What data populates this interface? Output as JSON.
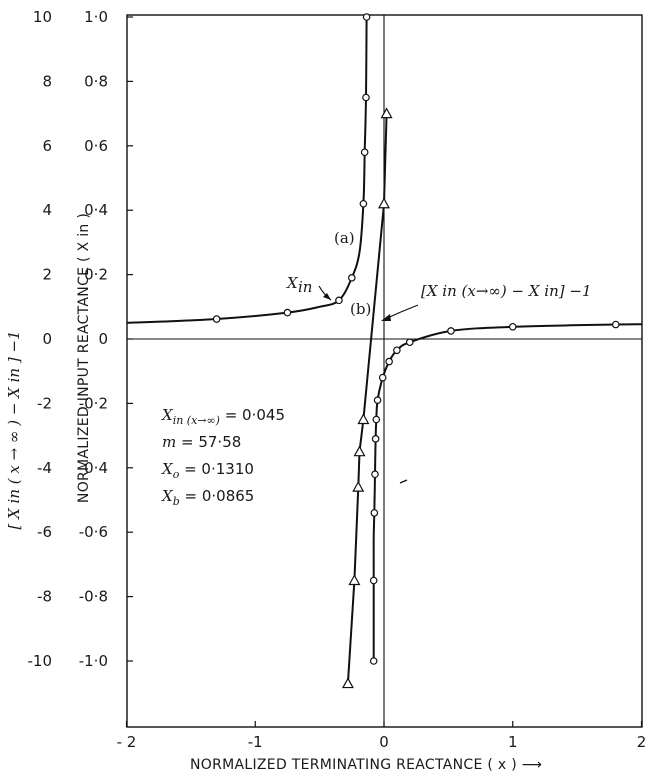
{
  "chart_data": {
    "type": "line",
    "xlabel": "NORMALIZED TERMINATING REACTANCE",
    "xlabel_var": "( x )",
    "ylabel_inner": "NORMALIZED INPUT REACTANCE",
    "ylabel_inner_var": "( X in )",
    "ylabel_outer": "[ X in ( x → ∞ ) − X in ] −1",
    "xlim": [
      -2,
      2
    ],
    "ylim_inner": [
      -1.0,
      1.0
    ],
    "ylim_outer": [
      -10,
      10
    ],
    "x_ticks": [
      "- 2",
      "-1",
      "0",
      "1",
      "2"
    ],
    "y_inner_ticks": [
      "1·0",
      "0·8",
      "0·6",
      "0·4",
      "0·2",
      "0",
      "-0·2",
      "-0·4",
      "-0·6",
      "-0·8",
      "-1·0"
    ],
    "y_outer_ticks": [
      "10",
      "8",
      "6",
      "4",
      "2",
      "0",
      "-2",
      "-4",
      "-6",
      "-8",
      "-10"
    ],
    "series": [
      {
        "label": "(a)",
        "curve_name": "X in",
        "marker": "circle",
        "segments": [
          [
            [
              -2.0,
              0.05
            ],
            [
              -1.3,
              0.062
            ],
            [
              -0.75,
              0.082
            ],
            [
              -0.5,
              0.1
            ],
            [
              -0.35,
              0.12
            ],
            [
              -0.25,
              0.19
            ],
            [
              -0.19,
              0.27
            ],
            [
              -0.16,
              0.42
            ],
            [
              -0.15,
              0.58
            ],
            [
              -0.14,
              0.75
            ],
            [
              -0.135,
              1.0
            ]
          ],
          [
            [
              -0.08,
              -1.0
            ],
            [
              -0.08,
              -0.75
            ],
            [
              -0.08,
              -0.62
            ],
            [
              -0.075,
              -0.54
            ],
            [
              -0.07,
              -0.42
            ],
            [
              -0.065,
              -0.31
            ],
            [
              -0.06,
              -0.25
            ],
            [
              -0.05,
              -0.19
            ],
            [
              -0.01,
              -0.12
            ],
            [
              0.04,
              -0.07
            ],
            [
              0.1,
              -0.035
            ],
            [
              0.2,
              -0.01
            ],
            [
              0.52,
              0.025
            ],
            [
              1.0,
              0.038
            ],
            [
              1.8,
              0.045
            ],
            [
              2.0,
              0.046
            ]
          ]
        ],
        "marked_points": [
          [
            -1.3,
            0.062
          ],
          [
            -0.75,
            0.082
          ],
          [
            -0.35,
            0.12
          ],
          [
            -0.25,
            0.19
          ],
          [
            -0.16,
            0.42
          ],
          [
            -0.15,
            0.58
          ],
          [
            -0.14,
            0.75
          ],
          [
            -0.135,
            1.0
          ],
          [
            -0.08,
            -1.0
          ],
          [
            -0.08,
            -0.75
          ],
          [
            -0.075,
            -0.54
          ],
          [
            -0.07,
            -0.42
          ],
          [
            -0.065,
            -0.31
          ],
          [
            -0.06,
            -0.25
          ],
          [
            -0.05,
            -0.19
          ],
          [
            -0.01,
            -0.12
          ],
          [
            0.04,
            -0.07
          ],
          [
            0.1,
            -0.035
          ],
          [
            0.2,
            -0.01
          ],
          [
            0.52,
            0.025
          ],
          [
            1.0,
            0.038
          ],
          [
            1.8,
            0.045
          ]
        ]
      },
      {
        "label": "(b)",
        "marker": "triangle",
        "axis": "outer",
        "points": [
          [
            -0.28,
            -10.7
          ],
          [
            -0.23,
            -7.5
          ],
          [
            -0.2,
            -4.6
          ],
          [
            -0.19,
            -3.5
          ],
          [
            -0.16,
            -2.5
          ],
          [
            0.0,
            4.2
          ],
          [
            0.02,
            7.0
          ]
        ]
      }
    ],
    "annotations": {
      "label_a": "(a)",
      "label_b": "(b)",
      "label_xin_main": "X",
      "label_xin_sub": "in",
      "label_bracket": "[X in (x→∞) − X in] −1"
    },
    "params": [
      {
        "name": "X",
        "sub": "in (x→∞)",
        "value": "= 0·045"
      },
      {
        "name": "m",
        "sub": "",
        "value": "= 57·58"
      },
      {
        "name": "X",
        "sub": "o",
        "value": "= 0·1310"
      },
      {
        "name": "X",
        "sub": "b",
        "value": "= 0·0865"
      }
    ]
  }
}
